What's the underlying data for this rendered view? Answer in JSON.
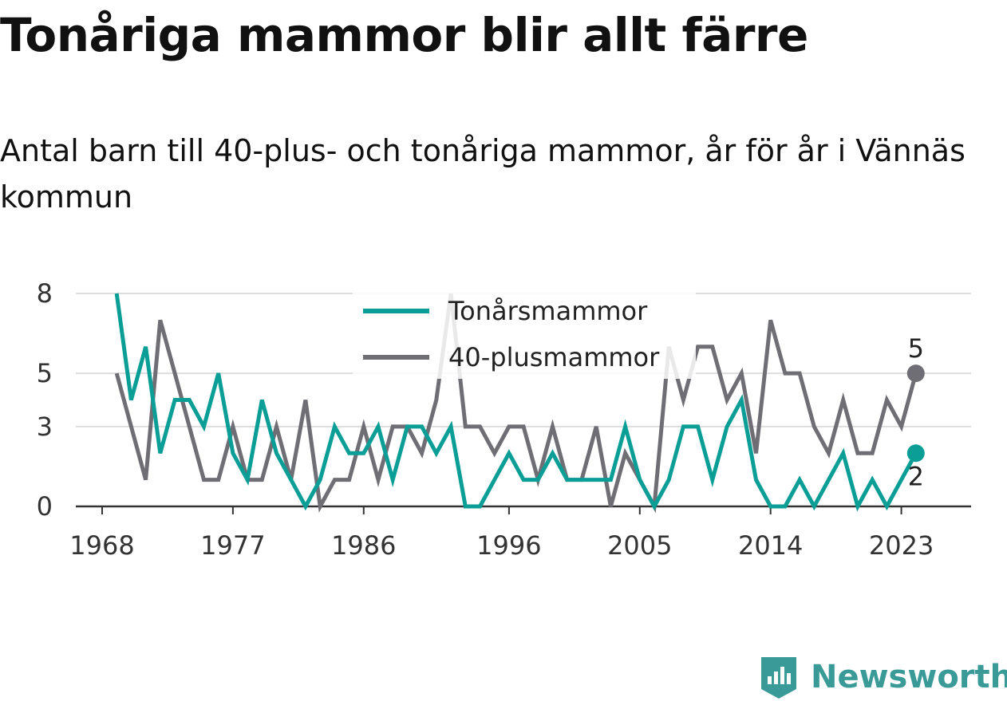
{
  "chart_data": {
    "type": "line",
    "title": "Tonåriga mammor blir allt färre",
    "subtitle": "Antal barn till 40-plus- och tonåriga mammor, år för år i Vännäs kommun",
    "x": [
      1969,
      1970,
      1971,
      1972,
      1973,
      1974,
      1975,
      1976,
      1977,
      1978,
      1979,
      1980,
      1981,
      1982,
      1983,
      1984,
      1985,
      1986,
      1987,
      1988,
      1989,
      1990,
      1991,
      1992,
      1993,
      1994,
      1995,
      1996,
      1997,
      1998,
      1999,
      2000,
      2001,
      2002,
      2003,
      2004,
      2005,
      2006,
      2007,
      2008,
      2009,
      2010,
      2011,
      2012,
      2013,
      2014,
      2015,
      2016,
      2017,
      2018,
      2019,
      2020,
      2021,
      2022,
      2023,
      2024
    ],
    "series": [
      {
        "name": "Tonårsmammor",
        "color": "#0a9e96",
        "values": [
          8,
          4,
          6,
          2,
          4,
          4,
          3,
          5,
          2,
          1,
          4,
          2,
          1,
          0,
          1,
          3,
          2,
          2,
          3,
          1,
          3,
          3,
          2,
          3,
          0,
          0,
          1,
          2,
          1,
          1,
          2,
          1,
          1,
          1,
          1,
          3,
          1,
          0,
          1,
          3,
          3,
          1,
          3,
          4,
          1,
          0,
          0,
          1,
          0,
          1,
          2,
          0,
          1,
          0,
          1,
          2
        ]
      },
      {
        "name": "40-plusmammor",
        "color": "#6e6e74",
        "values": [
          5,
          3,
          1,
          7,
          5,
          3,
          1,
          1,
          3,
          1,
          1,
          3,
          1,
          4,
          0,
          1,
          1,
          3,
          1,
          3,
          3,
          2,
          4,
          8,
          3,
          3,
          2,
          3,
          3,
          1,
          3,
          1,
          1,
          3,
          0,
          2,
          1,
          0,
          6,
          4,
          6,
          6,
          4,
          5,
          2,
          7,
          5,
          5,
          3,
          2,
          4,
          2,
          2,
          4,
          3,
          5
        ]
      }
    ],
    "xticks": [
      "1968",
      "1977",
      "1986",
      "1996",
      "2005",
      "2014",
      "2023"
    ],
    "yticks": [
      "0",
      "3",
      "5",
      "8"
    ],
    "ylim": [
      0,
      8
    ],
    "xlim": [
      1968,
      2025
    ],
    "grid": true,
    "legend_position": "top-center",
    "end_labels": [
      "2",
      "5"
    ]
  },
  "brand": {
    "name": "Newsworthy",
    "color": "#3a9a98"
  }
}
